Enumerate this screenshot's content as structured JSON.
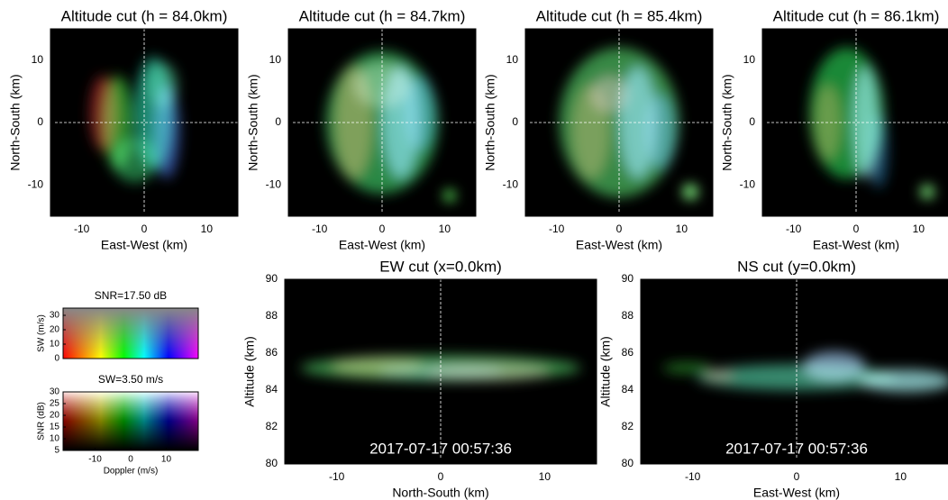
{
  "chart_data": [
    {
      "type": "image",
      "title": "Altitude cut (h = 84.0km)",
      "xlabel": "East-West (km)",
      "ylabel": "North-South (km)",
      "xlim": [
        -15,
        15
      ],
      "ylim": [
        -15,
        15
      ],
      "xticks": [
        -10,
        0,
        10
      ],
      "yticks": [
        -10,
        0,
        10
      ]
    },
    {
      "type": "image",
      "title": "Altitude cut (h = 84.7km)",
      "xlabel": "East-West (km)",
      "ylabel": "North-South (km)",
      "xlim": [
        -15,
        15
      ],
      "ylim": [
        -15,
        15
      ],
      "xticks": [
        -10,
        0,
        10
      ],
      "yticks": [
        -10,
        0,
        10
      ]
    },
    {
      "type": "image",
      "title": "Altitude cut (h = 85.4km)",
      "xlabel": "East-West (km)",
      "ylabel": "North-South (km)",
      "xlim": [
        -15,
        15
      ],
      "ylim": [
        -15,
        15
      ],
      "xticks": [
        -10,
        0,
        10
      ],
      "yticks": [
        -10,
        0,
        10
      ]
    },
    {
      "type": "image",
      "title": "Altitude cut (h = 86.1km)",
      "xlabel": "East-West (km)",
      "ylabel": "North-South (km)",
      "xlim": [
        -15,
        15
      ],
      "ylim": [
        -15,
        15
      ],
      "xticks": [
        -10,
        0,
        10
      ],
      "yticks": [
        -10,
        0,
        10
      ]
    },
    {
      "type": "image",
      "title": "EW cut (x=0.0km)",
      "xlabel": "North-South (km)",
      "ylabel": "Altitude (km)",
      "xlim": [
        -15,
        15
      ],
      "ylim": [
        80,
        90
      ],
      "xticks": [
        -10,
        0,
        10
      ],
      "yticks": [
        80,
        82,
        84,
        86,
        88,
        90
      ],
      "annotation": "2017-07-17 00:57:36"
    },
    {
      "type": "image",
      "title": "NS cut (y=0.0km)",
      "xlabel": "East-West (km)",
      "ylabel": "Altitude (km)",
      "xlim": [
        -15,
        15
      ],
      "ylim": [
        80,
        90
      ],
      "xticks": [
        -10,
        0,
        10
      ],
      "yticks": [
        80,
        82,
        84,
        86,
        88,
        90
      ],
      "annotation": "2017-07-17 00:57:36"
    },
    {
      "type": "colormap",
      "title": "SNR=17.50 dB",
      "ylabel": "SW (m/s)",
      "xlim": [
        -19,
        19
      ],
      "ylim": [
        0,
        35
      ],
      "yticks": [
        0,
        10,
        20,
        30
      ]
    },
    {
      "type": "colormap",
      "title": "SW=3.50 m/s",
      "xlabel": "Doppler (m/s)",
      "ylabel": "SNR (dB)",
      "xlim": [
        -19,
        19
      ],
      "ylim": [
        5,
        30
      ],
      "xticks": [
        -10,
        0,
        10
      ],
      "yticks": [
        5,
        10,
        15,
        20,
        25,
        30
      ]
    }
  ]
}
